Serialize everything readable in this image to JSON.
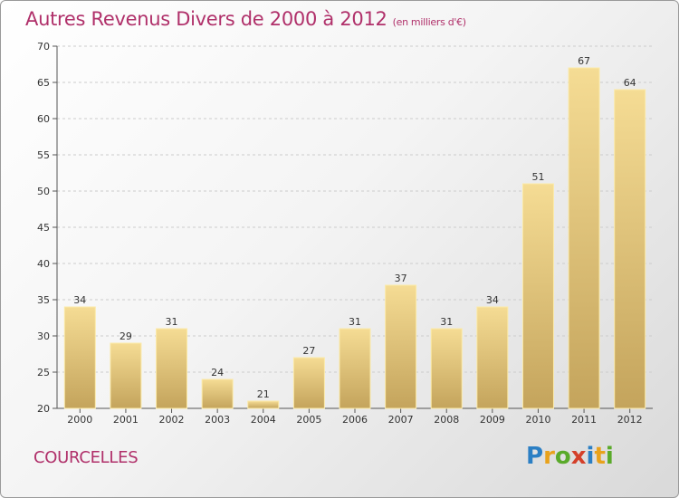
{
  "title": "Autres Revenus Divers de 2000 à 2012",
  "title_unit": "(en milliers d'€)",
  "place": "COURCELLES",
  "logo": {
    "text": "Proxiti",
    "letter_colors": [
      "#2b7fc4",
      "#e8a21c",
      "#5aaa2a",
      "#d4402a",
      "#2b7fc4",
      "#e8a21c",
      "#5aaa2a"
    ]
  },
  "colors": {
    "bar_top": "#f5dc94",
    "bar_bottom": "#c4a45c",
    "accent": "#b0306a"
  },
  "chart_data": {
    "type": "bar",
    "title": "Autres Revenus Divers de 2000 à 2012",
    "xlabel": "",
    "ylabel": "",
    "categories": [
      "2000",
      "2001",
      "2002",
      "2003",
      "2004",
      "2005",
      "2006",
      "2007",
      "2008",
      "2009",
      "2010",
      "2011",
      "2012"
    ],
    "values": [
      34,
      29,
      31,
      24,
      21,
      27,
      31,
      37,
      31,
      34,
      51,
      67,
      64
    ],
    "ylim": [
      20,
      70
    ],
    "yticks": [
      20,
      25,
      30,
      35,
      40,
      45,
      50,
      55,
      60,
      65,
      70
    ],
    "grid": true,
    "legend": "none"
  }
}
